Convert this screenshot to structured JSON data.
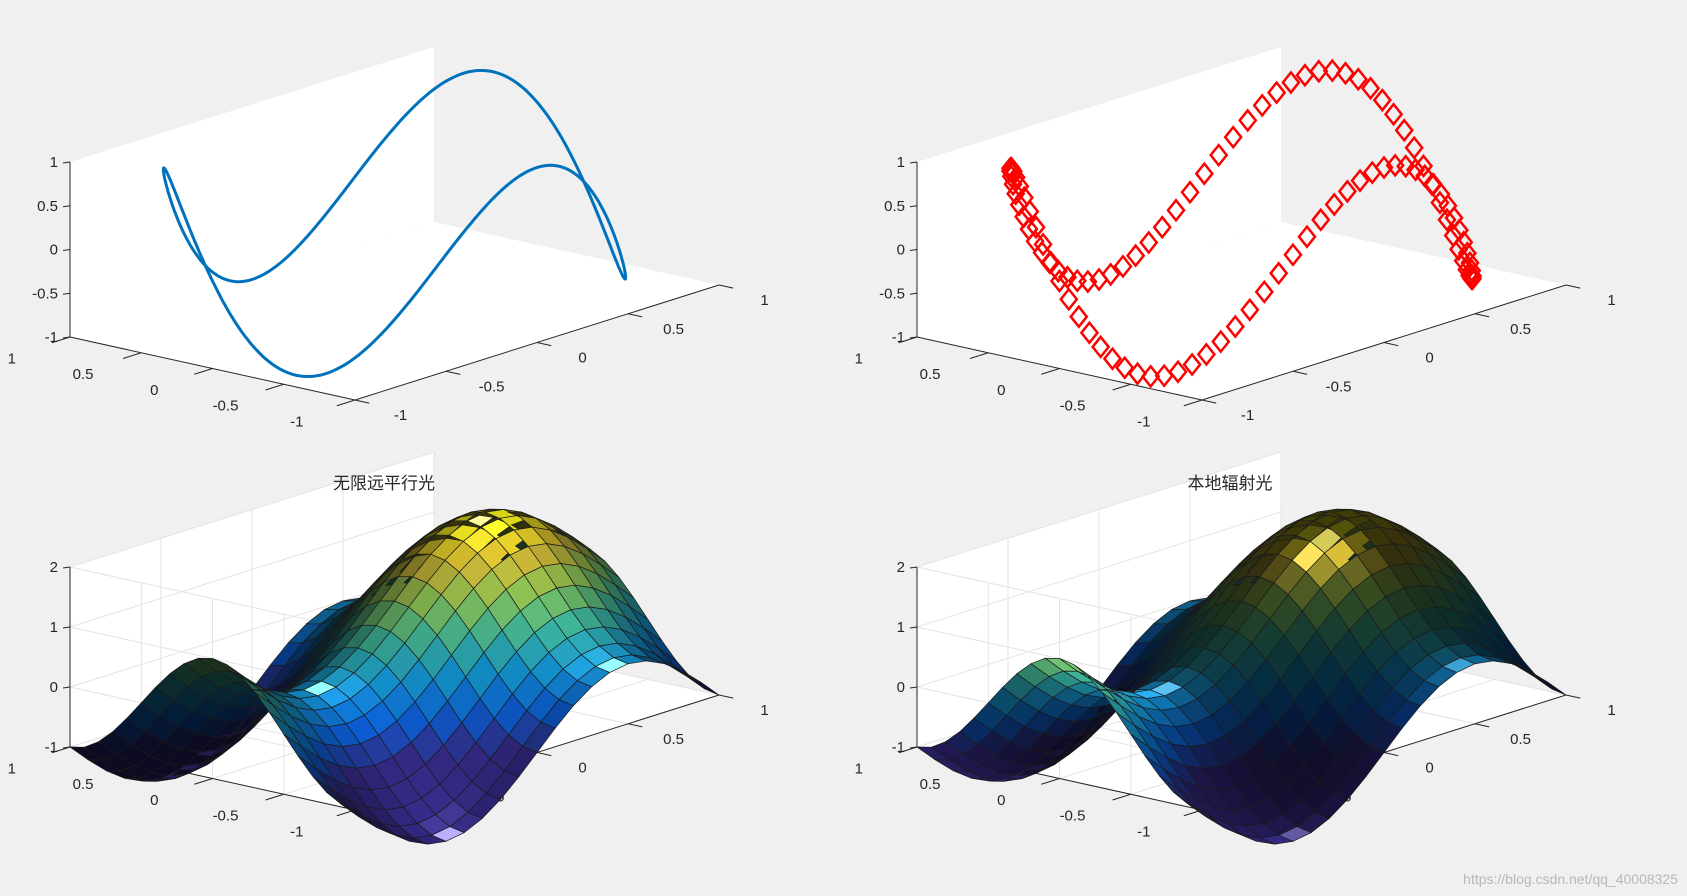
{
  "figure": {
    "background": "#f0f0f0",
    "watermark": "https://blog.csdn.net/qq_40008325"
  },
  "chart_data": [
    {
      "type": "line3d",
      "title": "",
      "xlim": [
        -1,
        1
      ],
      "ylim": [
        -1,
        1
      ],
      "zlim": [
        -1,
        1
      ],
      "x_ticks": [
        "-1",
        "-0.5",
        "0",
        "0.5",
        "1"
      ],
      "y_ticks": [
        "-1",
        "-0.5",
        "0",
        "0.5",
        "1"
      ],
      "z_ticks": [
        "-1",
        "-0.5",
        "0",
        "0.5",
        "1"
      ],
      "curve": "x = cos(t), y = sin(t), z = sin(3t) over t in [0, 2π]",
      "line_color": "#0072bd",
      "marker": "none",
      "grid": false
    },
    {
      "type": "line3d",
      "title": "",
      "xlim": [
        -1,
        1
      ],
      "ylim": [
        -1,
        1
      ],
      "zlim": [
        -1,
        1
      ],
      "x_ticks": [
        "-1",
        "-0.5",
        "0",
        "0.5",
        "1"
      ],
      "y_ticks": [
        "-1",
        "-0.5",
        "0",
        "0.5",
        "1"
      ],
      "z_ticks": [
        "-1",
        "-0.5",
        "0",
        "0.5",
        "1"
      ],
      "curve": "x = cos(t), y = sin(t), z = sin(3t) over t in [0, 2π]",
      "line_color": "#ff0000",
      "marker": "diamond",
      "marker_count": 100,
      "grid": false
    },
    {
      "type": "surface",
      "title": "无限远平行光",
      "lighting": "infinite",
      "xlim": [
        -1,
        1
      ],
      "ylim": [
        -1,
        1
      ],
      "zlim": [
        -1,
        2
      ],
      "x_ticks": [
        "-1",
        "-0.5",
        "0",
        "0.5",
        "1"
      ],
      "y_ticks": [
        "-1",
        "-0.5",
        "0",
        "0.5",
        "1"
      ],
      "z_ticks": [
        "-1",
        "0",
        "1",
        "2"
      ],
      "surface": "z = sin(πx) + cos(πy) style wave on a 20×20 mesh",
      "colormap": "parula-like",
      "grid": true
    },
    {
      "type": "surface",
      "title": "本地辐射光",
      "lighting": "local",
      "xlim": [
        -1,
        1
      ],
      "ylim": [
        -1,
        1
      ],
      "zlim": [
        -1,
        2
      ],
      "x_ticks": [
        "-1",
        "-0.5",
        "0",
        "0.5",
        "1"
      ],
      "y_ticks": [
        "-1",
        "-0.5",
        "0",
        "0.5",
        "1"
      ],
      "z_ticks": [
        "-1",
        "0",
        "1",
        "2"
      ],
      "surface": "z = sin(πx) + cos(πy) style wave on a 20×20 mesh",
      "colormap": "parula-like",
      "grid": true
    }
  ]
}
